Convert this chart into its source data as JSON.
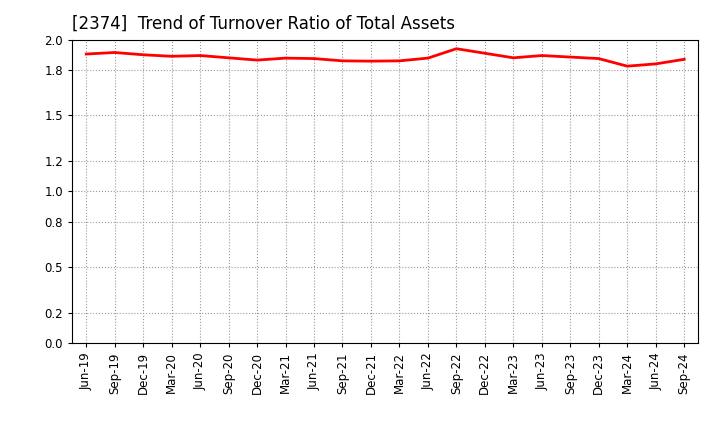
{
  "title": "[2374]  Trend of Turnover Ratio of Total Assets",
  "labels": [
    "Jun-19",
    "Sep-19",
    "Dec-19",
    "Mar-20",
    "Jun-20",
    "Sep-20",
    "Dec-20",
    "Mar-21",
    "Jun-21",
    "Sep-21",
    "Dec-21",
    "Mar-22",
    "Jun-22",
    "Sep-22",
    "Dec-22",
    "Mar-23",
    "Jun-23",
    "Sep-23",
    "Dec-23",
    "Mar-24",
    "Jun-24",
    "Sep-24"
  ],
  "values": [
    1.905,
    1.915,
    1.9,
    1.89,
    1.895,
    1.88,
    1.865,
    1.878,
    1.875,
    1.86,
    1.858,
    1.86,
    1.878,
    1.94,
    1.91,
    1.88,
    1.895,
    1.885,
    1.875,
    1.825,
    1.84,
    1.87
  ],
  "line_color": "#ff0000",
  "line_width": 2.0,
  "background_color": "#ffffff",
  "grid_color": "#999999",
  "ylim": [
    0.0,
    2.0
  ],
  "yticks": [
    0.0,
    0.2,
    0.5,
    0.8,
    1.0,
    1.2,
    1.5,
    1.8,
    2.0
  ],
  "title_fontsize": 12,
  "tick_fontsize": 8.5
}
